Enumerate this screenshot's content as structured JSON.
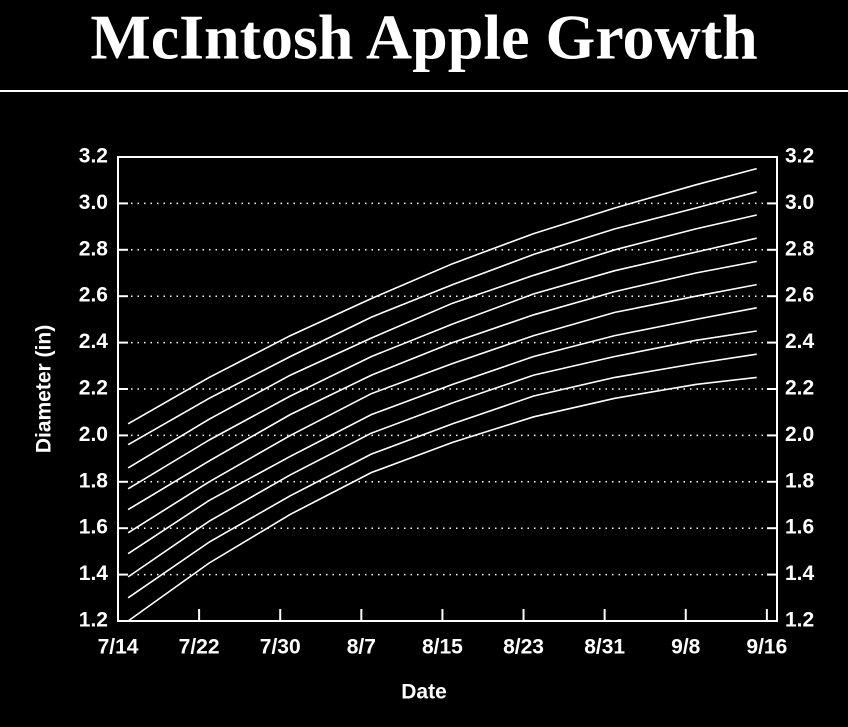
{
  "chart_data": {
    "type": "line",
    "title": "McIntosh Apple Growth",
    "x_label": "Date",
    "y_label": "Diameter (in)",
    "x": [
      "7/15",
      "7/23",
      "7/31",
      "8/8",
      "8/16",
      "8/24",
      "9/1",
      "9/9",
      "9/15"
    ],
    "color": "#ffffff",
    "series": [
      {
        "values": [
          2.05,
          2.25,
          2.43,
          2.59,
          2.74,
          2.87,
          2.98,
          3.08,
          3.15
        ]
      },
      {
        "values": [
          1.96,
          2.16,
          2.34,
          2.51,
          2.65,
          2.78,
          2.89,
          2.98,
          3.05
        ]
      },
      {
        "values": [
          1.86,
          2.07,
          2.26,
          2.42,
          2.57,
          2.69,
          2.8,
          2.89,
          2.95
        ]
      },
      {
        "values": [
          1.77,
          1.98,
          2.17,
          2.34,
          2.48,
          2.61,
          2.71,
          2.79,
          2.85
        ]
      },
      {
        "values": [
          1.68,
          1.89,
          2.09,
          2.26,
          2.4,
          2.52,
          2.62,
          2.7,
          2.75
        ]
      },
      {
        "values": [
          1.58,
          1.8,
          2.0,
          2.18,
          2.31,
          2.43,
          2.53,
          2.6,
          2.65
        ]
      },
      {
        "values": [
          1.49,
          1.72,
          1.91,
          2.09,
          2.22,
          2.34,
          2.43,
          2.5,
          2.55
        ]
      },
      {
        "values": [
          1.39,
          1.63,
          1.83,
          2.01,
          2.14,
          2.26,
          2.34,
          2.41,
          2.45
        ]
      },
      {
        "values": [
          1.3,
          1.54,
          1.74,
          1.92,
          2.05,
          2.17,
          2.25,
          2.31,
          2.35
        ]
      },
      {
        "values": [
          1.2,
          1.45,
          1.66,
          1.84,
          1.97,
          2.08,
          2.16,
          2.22,
          2.25
        ]
      }
    ],
    "xlim": [
      "7/14",
      "9/17"
    ],
    "xticks": [
      "7/14",
      "7/22",
      "7/30",
      "8/7",
      "8/15",
      "8/23",
      "8/31",
      "9/8",
      "9/16"
    ],
    "ylim": [
      1.2,
      3.2
    ],
    "yticks": [
      {
        "value": 1.2,
        "label": "1.2"
      },
      {
        "value": 1.4,
        "label": "1.4"
      },
      {
        "value": 1.6,
        "label": "1.6"
      },
      {
        "value": 1.8,
        "label": "1.8"
      },
      {
        "value": 2.0,
        "label": "2.0"
      },
      {
        "value": 2.2,
        "label": "2.2"
      },
      {
        "value": 2.4,
        "label": "2.4"
      },
      {
        "value": 2.6,
        "label": "2.6"
      },
      {
        "value": 2.8,
        "label": "2.8"
      },
      {
        "value": 3.0,
        "label": "3.0"
      },
      {
        "value": 3.2,
        "label": "3.2"
      }
    ],
    "grid": true
  }
}
